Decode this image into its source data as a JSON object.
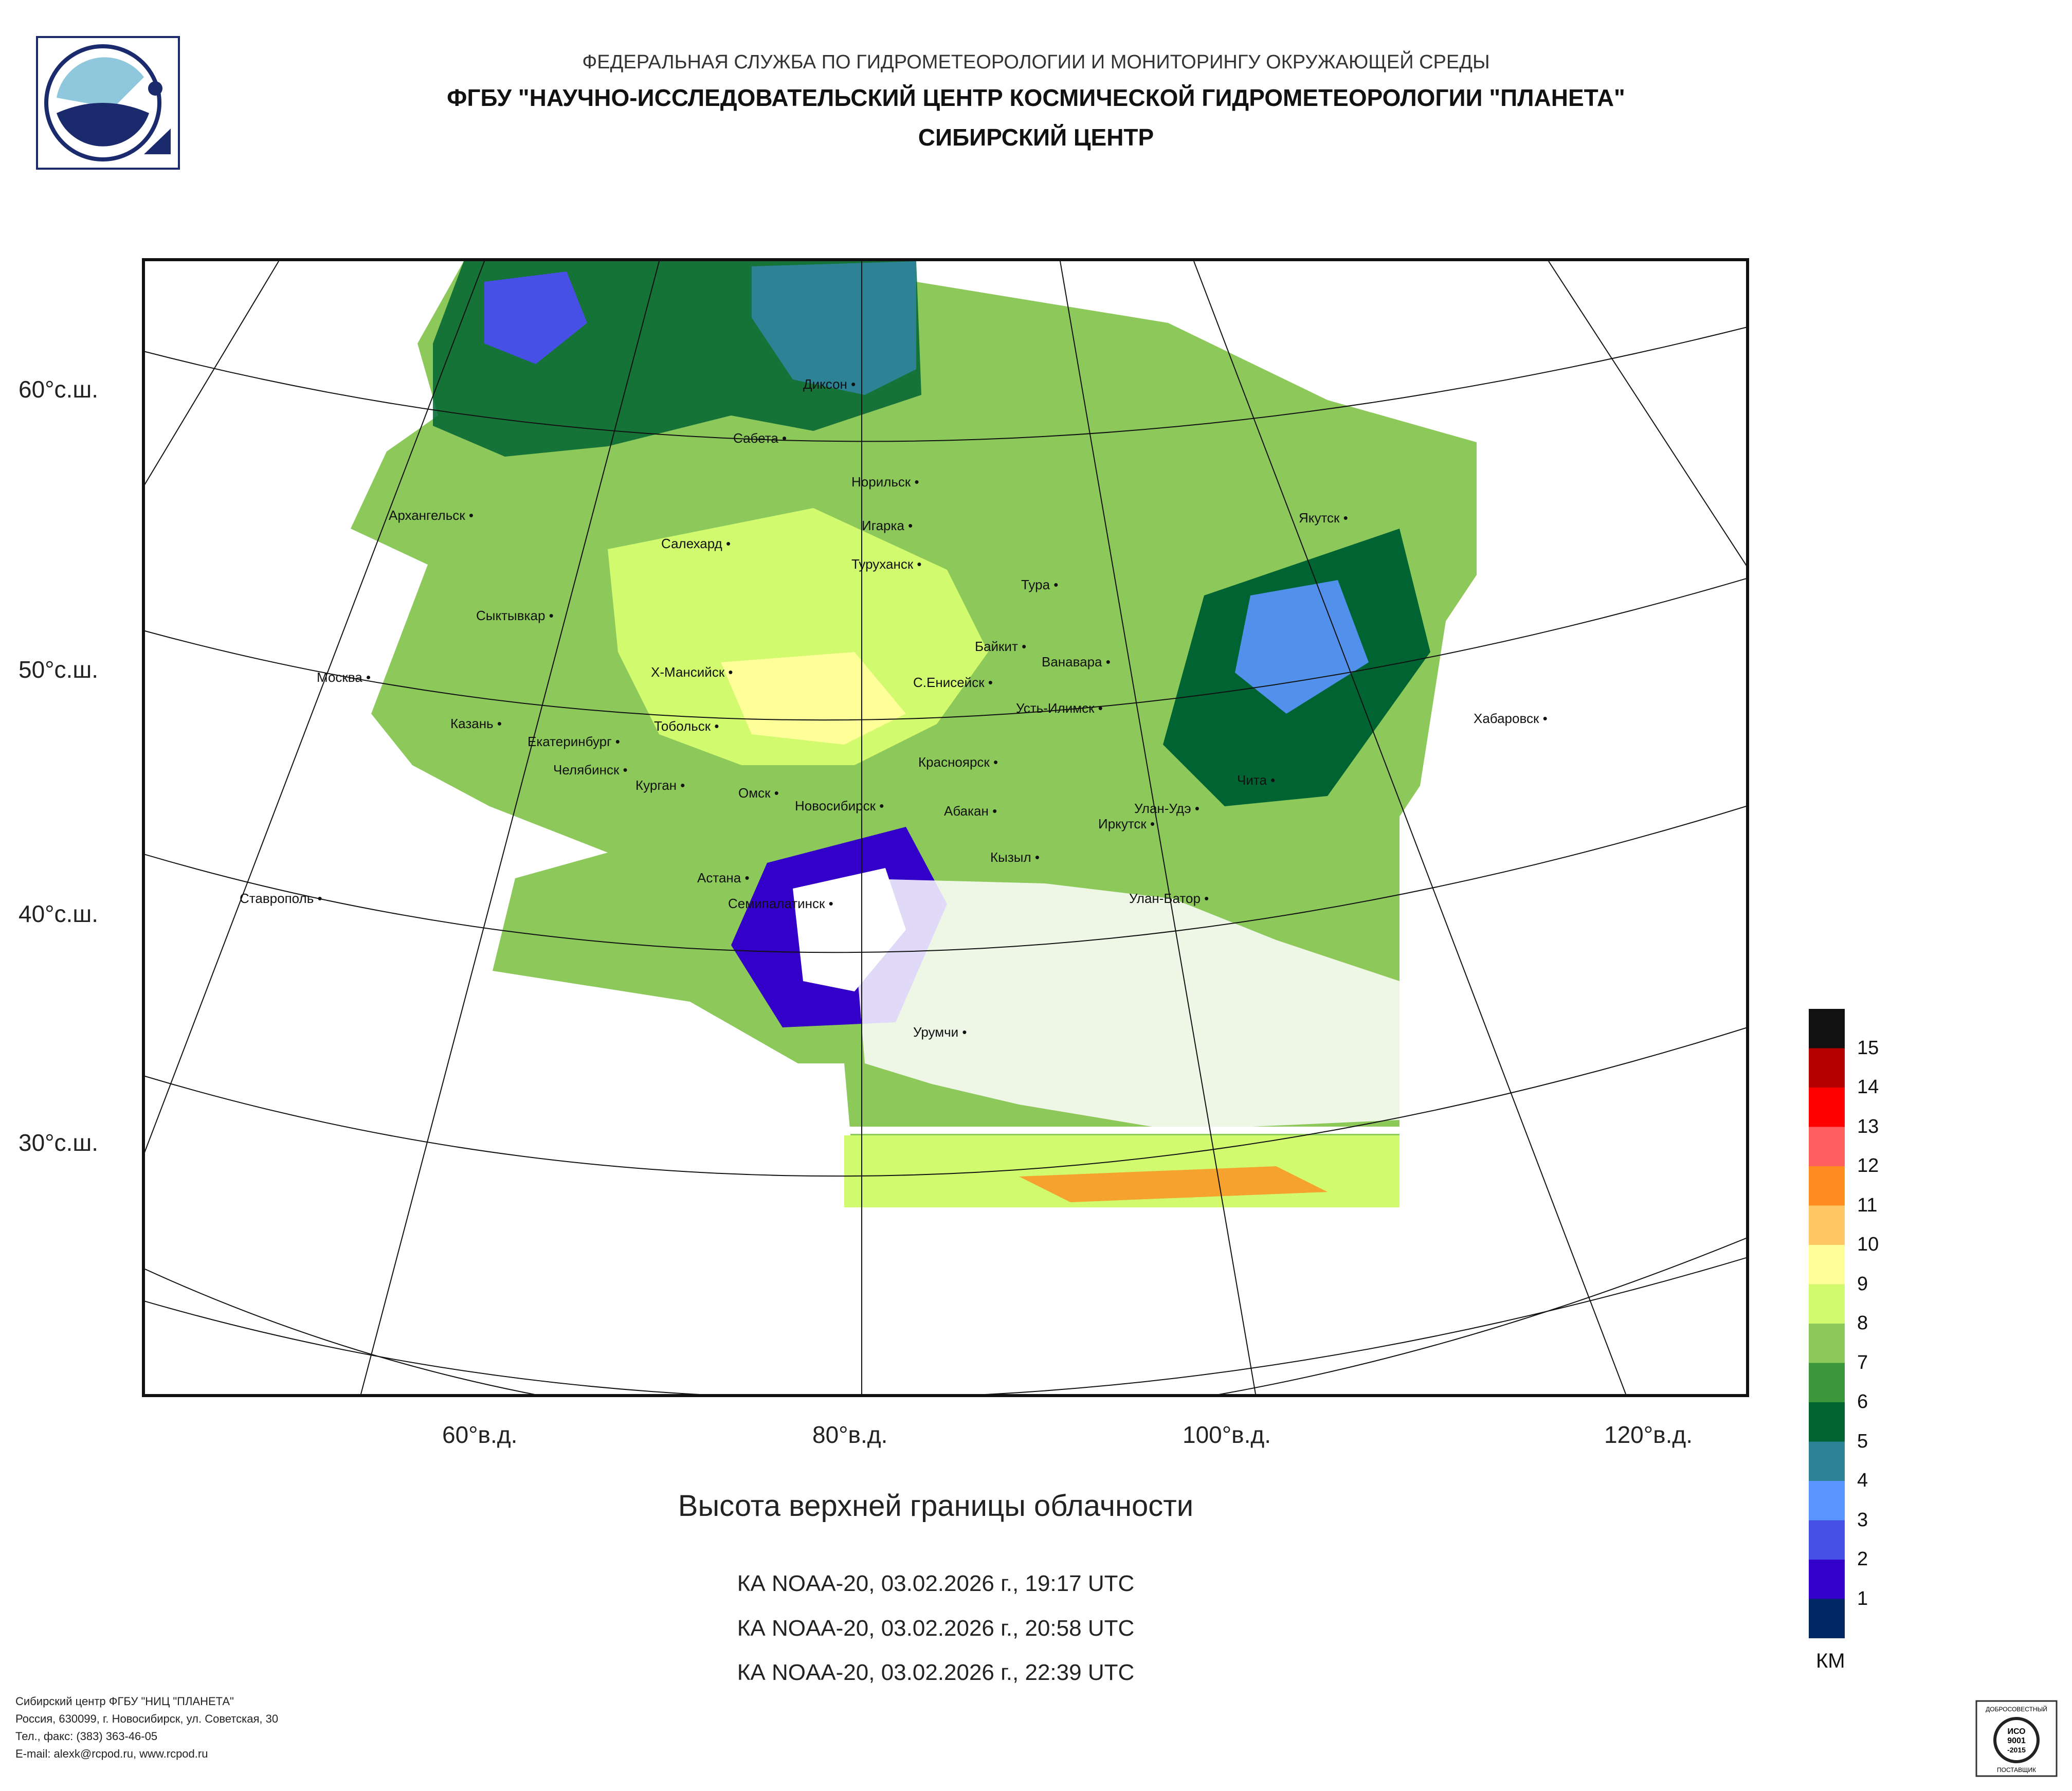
{
  "header": {
    "line1": "ФЕДЕРАЛЬНАЯ СЛУЖБА ПО ГИДРОМЕТЕОРОЛОГИИ И МОНИТОРИНГУ ОКРУЖАЮЩЕЙ СРЕДЫ",
    "line2": "ФГБУ \"НАУЧНО-ИССЛЕДОВАТЕЛЬСКИЙ ЦЕНТР КОСМИЧЕСКОЙ ГИДРОМЕТЕОРОЛОГИИ \"ПЛАНЕТА\"",
    "line3": "СИБИРСКИЙ ЦЕНТР"
  },
  "map": {
    "latitude_labels": [
      "60°с.ш.",
      "50°с.ш.",
      "40°с.ш.",
      "30°с.ш."
    ],
    "longitude_labels": [
      "60°в.д.",
      "80°в.д.",
      "100°в.д.",
      "120°в.д."
    ],
    "cities": [
      "Диксон",
      "Сабета",
      "Норильск",
      "Архангельск",
      "Салехард",
      "Игарка",
      "Туруханск",
      "Якутск",
      "Тура",
      "Сыктывкар",
      "Байкит",
      "Ванавара",
      "Москва",
      "Х-Мансийск",
      "С.Енисейск",
      "Усть-Илимск",
      "Хабаровск",
      "Казань",
      "Тобольск",
      "Екатеринбург",
      "Челябинск",
      "Курган",
      "Красноярск",
      "Чита",
      "Омск",
      "Новосибирск",
      "Абакан",
      "Улан-Удэ",
      "Иркутск",
      "Кызыл",
      "Ставрополь",
      "Астана",
      "Семипалатинск",
      "Улан-Батор",
      "Урумчи"
    ]
  },
  "title": "Высота верхней границы облачности",
  "passes": [
    "КА NOAA-20, 03.02.2026 г., 19:17 UTC",
    "КА NOAA-20, 03.02.2026 г., 20:58 UTC",
    "КА NOAA-20, 03.02.2026 г., 22:39 UTC"
  ],
  "legend": {
    "units": "КМ",
    "labels": [
      "15",
      "14",
      "13",
      "12",
      "11",
      "10",
      "9",
      "8",
      "7",
      "6",
      "5",
      "4",
      "3",
      "2",
      "1"
    ],
    "colors": [
      "#111111",
      "#b40000",
      "#ff0000",
      "#ff5f5f",
      "#ff8c1e",
      "#ffc864",
      "#ffff9a",
      "#d2fa6e",
      "#8cc85a",
      "#3c963c",
      "#006432",
      "#2d8296",
      "#5a96ff",
      "#4650e6",
      "#3200c8",
      "#002864"
    ]
  },
  "footer": {
    "line1": "Сибирский центр ФГБУ \"НИЦ \"ПЛАНЕТА\"",
    "line2": "Россия, 630099, г. Новосибирск, ул. Советская, 30",
    "line3": "Тел., факс: (383) 363-46-05",
    "line4": "E-mail: alexk@rcpod.ru, www.rcpod.ru"
  },
  "certificate": {
    "top": "ДОБРОСОВЕСТНЫЙ",
    "mid1": "ИСО",
    "mid2": "9001",
    "mid3": "-2015",
    "bottom": "ПОСТАВЩИК"
  }
}
